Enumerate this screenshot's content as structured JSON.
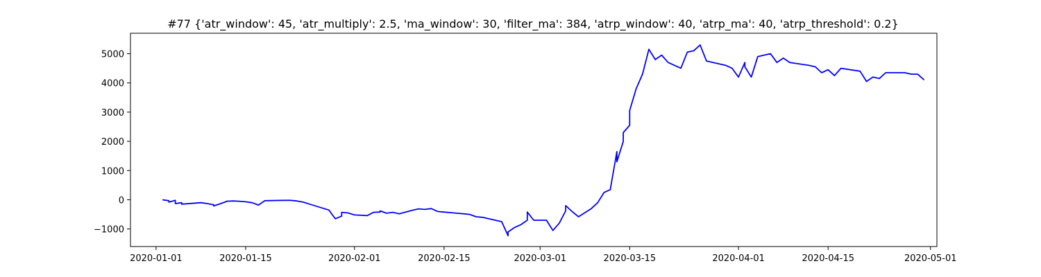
{
  "chart_data": {
    "type": "line",
    "title": "#77 {'atr_window': 45, 'atr_multiply': 2.5, 'ma_window': 30, 'filter_ma': 384, 'atrp_window': 40, 'atrp_ma': 40, 'atrp_threshold': 0.2}",
    "xlabel": "",
    "ylabel": "",
    "xlim": [
      "2019-12-28",
      "2020-05-02"
    ],
    "ylim": [
      -1600,
      5700
    ],
    "x_ticks": [
      "2020-01-01",
      "2020-01-15",
      "2020-02-01",
      "2020-02-15",
      "2020-03-01",
      "2020-03-15",
      "2020-04-01",
      "2020-04-15",
      "2020-05-01"
    ],
    "y_ticks": [
      -1000,
      0,
      1000,
      2000,
      3000,
      4000,
      5000
    ],
    "grid": false,
    "line_color": "#0000ff",
    "series": [
      {
        "x": [
          "2020-01-02",
          "2020-01-03",
          "2020-01-03",
          "2020-01-04",
          "2020-01-04",
          "2020-01-05",
          "2020-01-05",
          "2020-01-08",
          "2020-01-09",
          "2020-01-10",
          "2020-01-10",
          "2020-01-11",
          "2020-01-12",
          "2020-01-12",
          "2020-01-13",
          "2020-01-14",
          "2020-01-15",
          "2020-01-16",
          "2020-01-17",
          "2020-01-18",
          "2020-01-21",
          "2020-01-22",
          "2020-01-23",
          "2020-01-24",
          "2020-01-25",
          "2020-01-28",
          "2020-01-29",
          "2020-01-30",
          "2020-01-30",
          "2020-01-31",
          "2020-02-01",
          "2020-02-03",
          "2020-02-04",
          "2020-02-05",
          "2020-02-05",
          "2020-02-06",
          "2020-02-07",
          "2020-02-08",
          "2020-02-10",
          "2020-02-11",
          "2020-02-12",
          "2020-02-13",
          "2020-02-14",
          "2020-02-17",
          "2020-02-18",
          "2020-02-19",
          "2020-02-20",
          "2020-02-21",
          "2020-02-24",
          "2020-02-25",
          "2020-02-25",
          "2020-02-26",
          "2020-02-27",
          "2020-02-28",
          "2020-02-28",
          "2020-02-29",
          "2020-03-02",
          "2020-03-03",
          "2020-03-04",
          "2020-03-05",
          "2020-03-05",
          "2020-03-06",
          "2020-03-07",
          "2020-03-09",
          "2020-03-10",
          "2020-03-11",
          "2020-03-12",
          "2020-03-12",
          "2020-03-13",
          "2020-03-13",
          "2020-03-14",
          "2020-03-14",
          "2020-03-15",
          "2020-03-15",
          "2020-03-16",
          "2020-03-17",
          "2020-03-18",
          "2020-03-19",
          "2020-03-20",
          "2020-03-21",
          "2020-03-23",
          "2020-03-24",
          "2020-03-25",
          "2020-03-26",
          "2020-03-27",
          "2020-03-30",
          "2020-03-31",
          "2020-04-01",
          "2020-04-02",
          "2020-04-02",
          "2020-04-03",
          "2020-04-04",
          "2020-04-06",
          "2020-04-07",
          "2020-04-08",
          "2020-04-09",
          "2020-04-12",
          "2020-04-13",
          "2020-04-14",
          "2020-04-15",
          "2020-04-16",
          "2020-04-17",
          "2020-04-20",
          "2020-04-21",
          "2020-04-22",
          "2020-04-23",
          "2020-04-24",
          "2020-04-27",
          "2020-04-28",
          "2020-04-29",
          "2020-04-30"
        ],
        "y": [
          0,
          -30,
          -80,
          -20,
          -130,
          -100,
          -150,
          -100,
          -130,
          -170,
          -210,
          -140,
          -60,
          -50,
          -40,
          -50,
          -70,
          -100,
          -180,
          -30,
          -20,
          -20,
          -40,
          -80,
          -150,
          -350,
          -650,
          -560,
          -430,
          -450,
          -520,
          -540,
          -430,
          -420,
          -380,
          -460,
          -430,
          -480,
          -360,
          -310,
          -330,
          -300,
          -400,
          -460,
          -480,
          -500,
          -580,
          -600,
          -750,
          -1230,
          -1100,
          -950,
          -850,
          -700,
          -420,
          -700,
          -700,
          -1050,
          -800,
          -380,
          -200,
          -400,
          -580,
          -300,
          -100,
          250,
          350,
          400,
          1650,
          1300,
          2000,
          2300,
          2550,
          3050,
          3800,
          4300,
          5150,
          4800,
          4950,
          4700,
          4500,
          5050,
          5100,
          5300,
          4750,
          4600,
          4500,
          4200,
          4700,
          4550,
          4200,
          4900,
          5000,
          4700,
          4850,
          4700,
          4600,
          4550,
          4350,
          4450,
          4250,
          4500,
          4400,
          4050,
          4200,
          4150,
          4350,
          4350,
          4300,
          4300,
          4100
        ]
      }
    ]
  }
}
